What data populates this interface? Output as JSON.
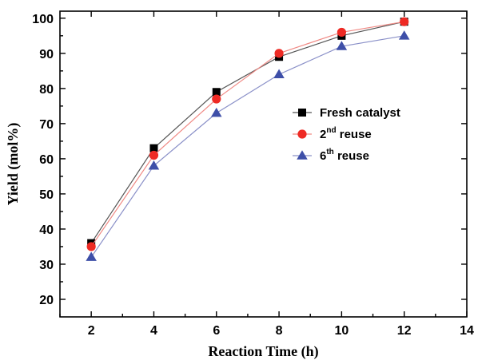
{
  "chart_data": {
    "type": "line",
    "xlabel": "Reaction Time (h)",
    "ylabel": "Yield (mol%)",
    "xlim": [
      1,
      14
    ],
    "ylim": [
      15,
      102
    ],
    "xticks": [
      2,
      4,
      6,
      8,
      10,
      12,
      14
    ],
    "yticks": [
      20,
      30,
      40,
      50,
      60,
      70,
      80,
      90,
      100
    ],
    "x": [
      2,
      4,
      6,
      8,
      10,
      12
    ],
    "legend_position": "right",
    "series": [
      {
        "name": "Fresh catalyst",
        "name_base": "Fresh catalyst",
        "name_sup": "",
        "name_tail": "",
        "values": [
          36,
          63,
          79,
          89,
          95,
          99
        ],
        "color": "#000000",
        "line_color": "#555555",
        "marker": "square"
      },
      {
        "name": "2nd reuse",
        "name_base": "2",
        "name_sup": "nd",
        "name_tail": " reuse",
        "values": [
          35,
          61,
          77,
          90,
          96,
          99
        ],
        "color": "#ee2a24",
        "line_color": "#f08a85",
        "marker": "circle"
      },
      {
        "name": "6th reuse",
        "name_base": "6",
        "name_sup": "th",
        "name_tail": " reuse",
        "values": [
          32,
          58,
          73,
          84,
          92,
          95
        ],
        "color": "#3e4fa8",
        "line_color": "#8a90c8",
        "marker": "triangle"
      }
    ]
  }
}
